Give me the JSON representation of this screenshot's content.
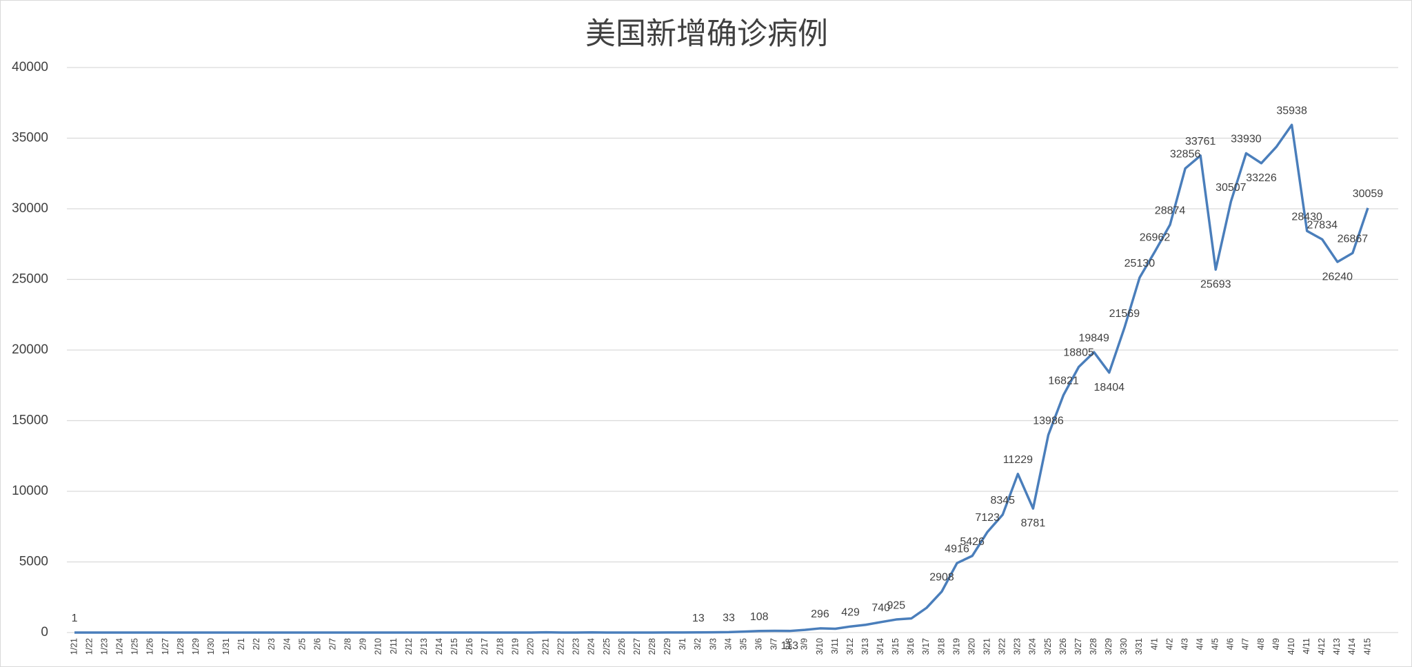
{
  "chart_data": {
    "type": "line",
    "title": "美国新增确诊病例",
    "categories": [
      "1/21",
      "1/22",
      "1/23",
      "1/24",
      "1/25",
      "1/26",
      "1/27",
      "1/28",
      "1/29",
      "1/30",
      "1/31",
      "2/1",
      "2/2",
      "2/3",
      "2/4",
      "2/5",
      "2/6",
      "2/7",
      "2/8",
      "2/9",
      "2/10",
      "2/11",
      "2/12",
      "2/13",
      "2/14",
      "2/15",
      "2/16",
      "2/17",
      "2/18",
      "2/19",
      "2/20",
      "2/21",
      "2/22",
      "2/23",
      "2/24",
      "2/25",
      "2/26",
      "2/27",
      "2/28",
      "2/29",
      "3/1",
      "3/2",
      "3/3",
      "3/4",
      "3/5",
      "3/6",
      "3/7",
      "3/8",
      "3/9",
      "3/10",
      "3/11",
      "3/12",
      "3/13",
      "3/14",
      "3/15",
      "3/16",
      "3/17",
      "3/18",
      "3/19",
      "3/20",
      "3/21",
      "3/22",
      "3/23",
      "3/24",
      "3/25",
      "3/26",
      "3/27",
      "3/28",
      "3/29",
      "3/30",
      "3/31",
      "4/1",
      "4/2",
      "4/3",
      "4/4",
      "4/5",
      "4/6",
      "4/7",
      "4/8",
      "4/9",
      "4/10",
      "4/11",
      "4/12",
      "4/13",
      "4/14",
      "4/15"
    ],
    "series": [
      {
        "name": "新增确诊",
        "color": "#4a7ebb",
        "values": [
          1,
          0,
          0,
          1,
          0,
          3,
          0,
          0,
          0,
          0,
          1,
          0,
          1,
          0,
          0,
          1,
          0,
          0,
          0,
          0,
          0,
          1,
          0,
          0,
          0,
          0,
          0,
          0,
          0,
          0,
          0,
          20,
          0,
          0,
          14,
          0,
          3,
          0,
          3,
          5,
          5,
          13,
          20,
          33,
          70,
          108,
          120,
          113,
          190,
          296,
          270,
          429,
          550,
          740,
          925,
          1000,
          1750,
          2908,
          4916,
          5426,
          7123,
          8345,
          11229,
          8781,
          13986,
          16821,
          18805,
          19849,
          18404,
          21569,
          25130,
          26962,
          28874,
          32856,
          33761,
          25693,
          30507,
          33930,
          33226,
          34400,
          35938,
          28430,
          27834,
          26240,
          26867,
          30059
        ],
        "value_labels": [
          "1",
          null,
          null,
          null,
          null,
          null,
          null,
          null,
          null,
          null,
          null,
          null,
          null,
          null,
          null,
          null,
          null,
          null,
          null,
          null,
          null,
          null,
          null,
          null,
          null,
          null,
          null,
          null,
          null,
          null,
          null,
          null,
          null,
          null,
          null,
          null,
          null,
          null,
          null,
          null,
          null,
          "13",
          null,
          "33",
          null,
          "108",
          null,
          "113",
          null,
          "296",
          null,
          "429",
          null,
          "740",
          "925",
          null,
          null,
          "2908",
          "4916",
          "5426",
          "7123",
          "8345",
          "11229",
          "8781",
          "13986",
          "16821",
          "18805",
          "19849",
          "18404",
          "21569",
          "25130",
          "26962",
          "28874",
          "32856",
          "33761",
          "25693",
          "30507",
          "33930",
          "33226",
          null,
          "35938",
          "28430",
          "27834",
          "26240",
          "26867",
          "30059"
        ]
      }
    ],
    "ylim": [
      0,
      40000
    ],
    "yticks": [
      0,
      5000,
      10000,
      15000,
      20000,
      25000,
      30000,
      35000,
      40000
    ],
    "grid": true
  }
}
